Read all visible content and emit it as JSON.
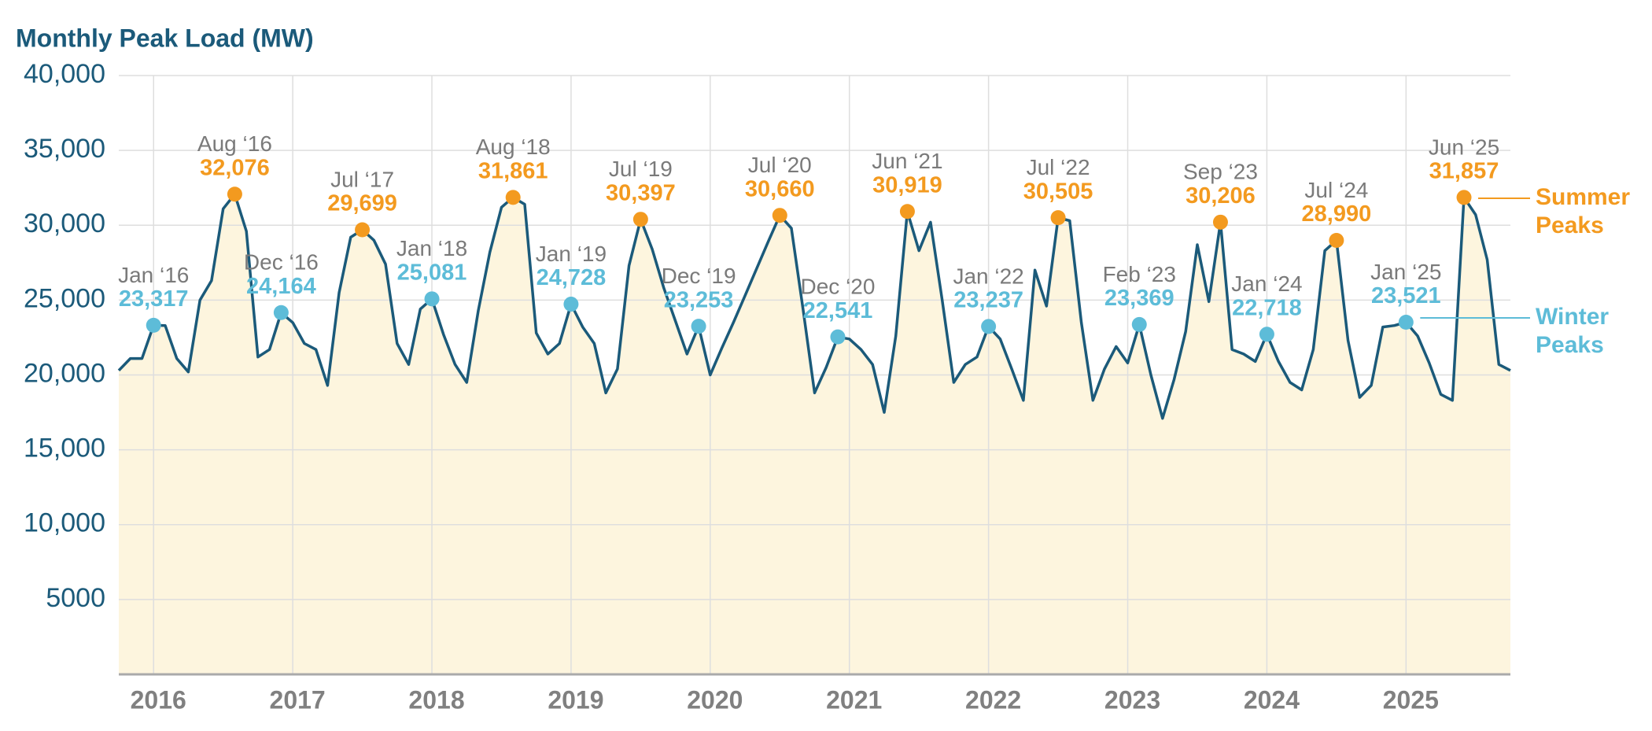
{
  "chart_data": {
    "type": "line",
    "title": "Monthly Peak Load (MW)",
    "categories": [
      null,
      null,
      null,
      "2016",
      null,
      null,
      null,
      null,
      null,
      null,
      null,
      null,
      null,
      null,
      null,
      "2017",
      null,
      null,
      null,
      null,
      null,
      null,
      null,
      null,
      null,
      null,
      null,
      "2018",
      null,
      null,
      null,
      null,
      null,
      null,
      null,
      null,
      null,
      null,
      null,
      "2019",
      null,
      null,
      null,
      null,
      null,
      null,
      null,
      null,
      null,
      null,
      null,
      "2020",
      null,
      null,
      null,
      null,
      null,
      null,
      null,
      null,
      null,
      null,
      null,
      "2021",
      null,
      null,
      null,
      null,
      null,
      null,
      null,
      null,
      null,
      null,
      null,
      "2022",
      null,
      null,
      null,
      null,
      null,
      null,
      null,
      null,
      null,
      null,
      null,
      "2023",
      null,
      null,
      null,
      null,
      null,
      null,
      null,
      null,
      null,
      null,
      null,
      "2024",
      null,
      null,
      null,
      null,
      null,
      null,
      null,
      null,
      null,
      null,
      null,
      "2025",
      null,
      null,
      null,
      null,
      null,
      null,
      null,
      null,
      null
    ],
    "ylim": [
      0,
      40000
    ],
    "yticks": [
      5000,
      {
        "value": 10000,
        "label": "10,000"
      },
      {
        "value": 15000,
        "label": "15,000"
      },
      {
        "value": 20000,
        "label": "20,000"
      },
      {
        "value": 25000,
        "label": "25,000"
      },
      {
        "value": 30000,
        "label": "30,000"
      },
      {
        "value": 35000,
        "label": "35,000"
      },
      {
        "value": 40000,
        "label": "40,000"
      }
    ],
    "grid": true,
    "series": [
      {
        "color": "#1b5a7a",
        "fill": "#fdf5de",
        "values": [
          20300,
          21100,
          21100,
          23317,
          23300,
          21100,
          20200,
          25000,
          26300,
          31100,
          32076,
          29600,
          21200,
          21700,
          24164,
          23500,
          22100,
          21700,
          19300,
          25500,
          29200,
          29699,
          29000,
          27400,
          22100,
          20700,
          24400,
          25081,
          22700,
          20700,
          19500,
          24300,
          28200,
          31200,
          31861,
          31400,
          22800,
          21400,
          22100,
          24728,
          23200,
          22100,
          18800,
          20400,
          27300,
          30397,
          28400,
          25800,
          23600,
          21400,
          23253,
          20000,
          21800,
          23500,
          25300,
          27100,
          28900,
          30660,
          29800,
          24400,
          18800,
          20500,
          22541,
          22400,
          21700,
          20700,
          17500,
          22600,
          30919,
          28300,
          30200,
          25000,
          19500,
          20700,
          21200,
          23237,
          22400,
          20400,
          18300,
          27000,
          24600,
          30505,
          30300,
          23500,
          18300,
          20400,
          21900,
          20800,
          23369,
          20000,
          17100,
          19700,
          22900,
          28700,
          24900,
          30206,
          21700,
          21400,
          20900,
          22718,
          20900,
          19500,
          19000,
          21700,
          28300,
          28990,
          22300,
          18500,
          19300,
          23200,
          23300,
          23521,
          22600,
          20800,
          18700,
          18300,
          31857,
          30700,
          27700,
          20700,
          20300
        ]
      },
      {
        "name": "Summer Peaks",
        "color": "#f39a1f",
        "values": [
          null,
          null,
          null,
          null,
          null,
          null,
          null,
          null,
          null,
          null,
          32076,
          null,
          null,
          null,
          null,
          null,
          null,
          null,
          null,
          null,
          null,
          29699,
          null,
          null,
          null,
          null,
          null,
          null,
          null,
          null,
          null,
          null,
          null,
          null,
          31861,
          null,
          null,
          null,
          null,
          null,
          null,
          null,
          null,
          null,
          null,
          30397,
          null,
          null,
          null,
          null,
          null,
          null,
          null,
          null,
          null,
          null,
          null,
          30660,
          null,
          null,
          null,
          null,
          null,
          null,
          null,
          null,
          null,
          null,
          30919,
          null,
          null,
          null,
          null,
          null,
          null,
          null,
          null,
          null,
          null,
          null,
          null,
          30505,
          null,
          null,
          null,
          null,
          null,
          null,
          null,
          null,
          null,
          null,
          null,
          null,
          null,
          30206,
          null,
          null,
          null,
          null,
          null,
          null,
          null,
          null,
          null,
          28990,
          null,
          null,
          null,
          null,
          null,
          null,
          null,
          null,
          null,
          null,
          31857,
          null,
          null,
          null,
          null
        ],
        "value_labels": [
          null,
          null,
          null,
          null,
          null,
          null,
          null,
          null,
          null,
          null,
          "32,076",
          null,
          null,
          null,
          null,
          null,
          null,
          null,
          null,
          null,
          null,
          "29,699",
          null,
          null,
          null,
          null,
          null,
          null,
          null,
          null,
          null,
          null,
          null,
          null,
          "31,861",
          null,
          null,
          null,
          null,
          null,
          null,
          null,
          null,
          null,
          null,
          "30,397",
          null,
          null,
          null,
          null,
          null,
          null,
          null,
          null,
          null,
          null,
          null,
          "30,660",
          null,
          null,
          null,
          null,
          null,
          null,
          null,
          null,
          null,
          null,
          "30,919",
          null,
          null,
          null,
          null,
          null,
          null,
          null,
          null,
          null,
          null,
          null,
          null,
          "30,505",
          null,
          null,
          null,
          null,
          null,
          null,
          null,
          null,
          null,
          null,
          null,
          null,
          null,
          "30,206",
          null,
          null,
          null,
          null,
          null,
          null,
          null,
          null,
          null,
          "28,990",
          null,
          null,
          null,
          null,
          null,
          null,
          null,
          null,
          null,
          null,
          "31,857",
          null,
          null,
          null,
          null
        ],
        "labels": [
          null,
          null,
          null,
          null,
          null,
          null,
          null,
          null,
          null,
          null,
          "Aug ‘16",
          null,
          null,
          null,
          null,
          null,
          null,
          null,
          null,
          null,
          null,
          "Jul ‘17",
          null,
          null,
          null,
          null,
          null,
          null,
          null,
          null,
          null,
          null,
          null,
          null,
          "Aug ‘18",
          null,
          null,
          null,
          null,
          null,
          null,
          null,
          null,
          null,
          null,
          "Jul ‘19",
          null,
          null,
          null,
          null,
          null,
          null,
          null,
          null,
          null,
          null,
          null,
          "Jul ‘20",
          null,
          null,
          null,
          null,
          null,
          null,
          null,
          null,
          null,
          null,
          "Jun ‘21",
          null,
          null,
          null,
          null,
          null,
          null,
          null,
          null,
          null,
          null,
          null,
          null,
          "Jul ‘22",
          null,
          null,
          null,
          null,
          null,
          null,
          null,
          null,
          null,
          null,
          null,
          null,
          null,
          "Sep ‘23",
          null,
          null,
          null,
          null,
          null,
          null,
          null,
          null,
          null,
          "Jul ‘24",
          null,
          null,
          null,
          null,
          null,
          null,
          null,
          null,
          null,
          null,
          "Jun ‘25",
          null,
          null,
          null,
          null
        ]
      },
      {
        "name": "Winter Peaks",
        "color": "#5dbcd8",
        "values": [
          null,
          null,
          null,
          23317,
          null,
          null,
          null,
          null,
          null,
          null,
          null,
          null,
          null,
          null,
          24164,
          null,
          null,
          null,
          null,
          null,
          null,
          null,
          null,
          null,
          null,
          null,
          null,
          25081,
          null,
          null,
          null,
          null,
          null,
          null,
          null,
          null,
          null,
          null,
          null,
          24728,
          null,
          null,
          null,
          null,
          null,
          null,
          null,
          null,
          null,
          null,
          23253,
          null,
          null,
          null,
          null,
          null,
          null,
          null,
          null,
          null,
          null,
          null,
          22541,
          null,
          null,
          null,
          null,
          null,
          null,
          null,
          null,
          null,
          null,
          null,
          null,
          23237,
          null,
          null,
          null,
          null,
          null,
          null,
          null,
          null,
          null,
          null,
          null,
          null,
          23369,
          null,
          null,
          null,
          null,
          null,
          null,
          null,
          null,
          null,
          null,
          22718,
          null,
          null,
          null,
          null,
          null,
          null,
          null,
          null,
          null,
          null,
          null,
          23521,
          null,
          null,
          null,
          null,
          null,
          null,
          null,
          null,
          null
        ],
        "value_labels": [
          null,
          null,
          null,
          "23,317",
          null,
          null,
          null,
          null,
          null,
          null,
          null,
          null,
          null,
          null,
          "24,164",
          null,
          null,
          null,
          null,
          null,
          null,
          null,
          null,
          null,
          null,
          null,
          null,
          "25,081",
          null,
          null,
          null,
          null,
          null,
          null,
          null,
          null,
          null,
          null,
          null,
          "24,728",
          null,
          null,
          null,
          null,
          null,
          null,
          null,
          null,
          null,
          null,
          "23,253",
          null,
          null,
          null,
          null,
          null,
          null,
          null,
          null,
          null,
          null,
          null,
          "22,541",
          null,
          null,
          null,
          null,
          null,
          null,
          null,
          null,
          null,
          null,
          null,
          null,
          "23,237",
          null,
          null,
          null,
          null,
          null,
          null,
          null,
          null,
          null,
          null,
          null,
          null,
          "23,369",
          null,
          null,
          null,
          null,
          null,
          null,
          null,
          null,
          null,
          null,
          "22,718",
          null,
          null,
          null,
          null,
          null,
          null,
          null,
          null,
          null,
          null,
          null,
          "23,521",
          null,
          null,
          null,
          null,
          null,
          null,
          null,
          null,
          null
        ],
        "labels": [
          null,
          null,
          null,
          "Jan ‘16",
          null,
          null,
          null,
          null,
          null,
          null,
          null,
          null,
          null,
          null,
          "Dec ‘16",
          null,
          null,
          null,
          null,
          null,
          null,
          null,
          null,
          null,
          null,
          null,
          null,
          "Jan ‘18",
          null,
          null,
          null,
          null,
          null,
          null,
          null,
          null,
          null,
          null,
          null,
          "Jan ‘19",
          null,
          null,
          null,
          null,
          null,
          null,
          null,
          null,
          null,
          null,
          "Dec ‘19",
          null,
          null,
          null,
          null,
          null,
          null,
          null,
          null,
          null,
          null,
          null,
          "Dec ‘20",
          null,
          null,
          null,
          null,
          null,
          null,
          null,
          null,
          null,
          null,
          null,
          null,
          "Jan ‘22",
          null,
          null,
          null,
          null,
          null,
          null,
          null,
          null,
          null,
          null,
          null,
          null,
          "Feb ‘23",
          null,
          null,
          null,
          null,
          null,
          null,
          null,
          null,
          null,
          null,
          "Jan ‘24",
          null,
          null,
          null,
          null,
          null,
          null,
          null,
          null,
          null,
          null,
          null,
          "Jan ‘25",
          null,
          null,
          null,
          null,
          null,
          null,
          null,
          null,
          null
        ]
      }
    ]
  }
}
